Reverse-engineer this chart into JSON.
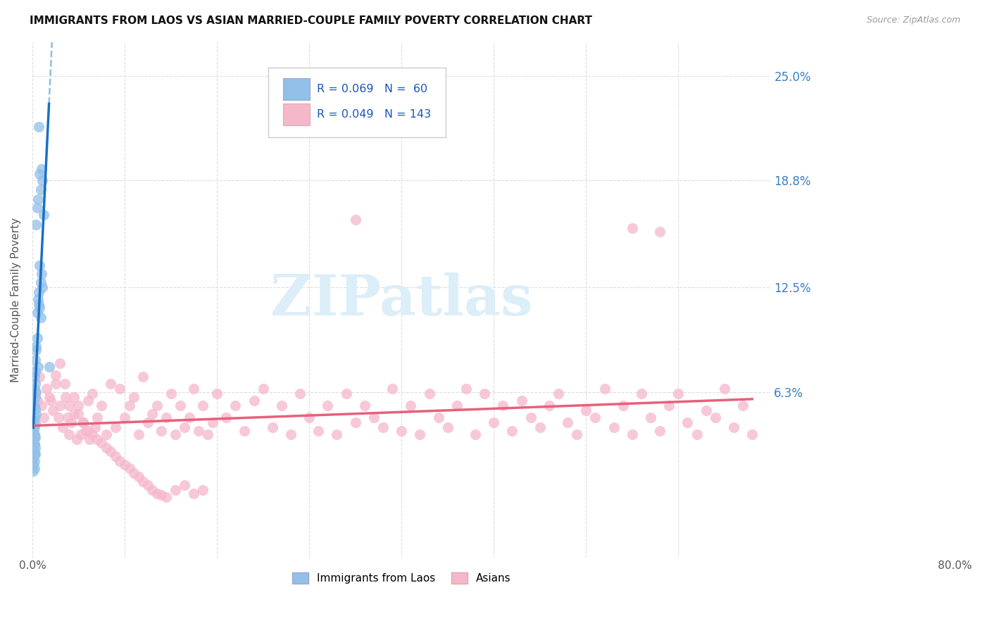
{
  "title": "IMMIGRANTS FROM LAOS VS ASIAN MARRIED-COUPLE FAMILY POVERTY CORRELATION CHART",
  "source": "Source: ZipAtlas.com",
  "ylabel": "Married-Couple Family Poverty",
  "ytick_labels": [
    "6.3%",
    "12.5%",
    "18.8%",
    "25.0%"
  ],
  "ytick_values": [
    0.063,
    0.125,
    0.188,
    0.25
  ],
  "xlim": [
    0.0,
    0.8
  ],
  "ylim": [
    -0.035,
    0.27
  ],
  "legend_color1": "#92c0e8",
  "legend_color2": "#f5b8cb",
  "scatter1_color": "#92c0e8",
  "scatter2_color": "#f5b8cb",
  "line1_color": "#1a6fc4",
  "line2_color": "#e8607a",
  "trend_dash_color": "#90bce0",
  "watermark": "ZIPatlas",
  "watermark_color": "#dceef8",
  "background_color": "#ffffff",
  "grid_color": "#dddddd",
  "laos_x": [
    0.007,
    0.01,
    0.008,
    0.011,
    0.009,
    0.006,
    0.005,
    0.012,
    0.004,
    0.008,
    0.01,
    0.009,
    0.011,
    0.007,
    0.006,
    0.008,
    0.005,
    0.009,
    0.004,
    0.003,
    0.006,
    0.007,
    0.005,
    0.004,
    0.003,
    0.002,
    0.003,
    0.002,
    0.004,
    0.003,
    0.001,
    0.002,
    0.003,
    0.004,
    0.002,
    0.001,
    0.003,
    0.002,
    0.001,
    0.002,
    0.003,
    0.001,
    0.002,
    0.001,
    0.002,
    0.003,
    0.001,
    0.002,
    0.001,
    0.002,
    0.001,
    0.001,
    0.002,
    0.001,
    0.002,
    0.003,
    0.001,
    0.002,
    0.001,
    0.018
  ],
  "laos_y": [
    0.22,
    0.195,
    0.192,
    0.188,
    0.183,
    0.177,
    0.172,
    0.168,
    0.162,
    0.138,
    0.133,
    0.128,
    0.125,
    0.122,
    0.118,
    0.113,
    0.11,
    0.107,
    0.088,
    0.082,
    0.078,
    0.115,
    0.095,
    0.09,
    0.075,
    0.072,
    0.068,
    0.065,
    0.063,
    0.06,
    0.058,
    0.055,
    0.053,
    0.05,
    0.048,
    0.046,
    0.044,
    0.042,
    0.04,
    0.038,
    0.036,
    0.034,
    0.032,
    0.03,
    0.028,
    0.026,
    0.024,
    0.022,
    0.02,
    0.018,
    0.016,
    0.038,
    0.036,
    0.034,
    0.032,
    0.03,
    0.028,
    0.026,
    0.024,
    0.078
  ],
  "asians_x": [
    0.003,
    0.005,
    0.008,
    0.01,
    0.012,
    0.015,
    0.018,
    0.02,
    0.022,
    0.025,
    0.028,
    0.03,
    0.033,
    0.036,
    0.038,
    0.04,
    0.042,
    0.045,
    0.048,
    0.05,
    0.053,
    0.055,
    0.058,
    0.06,
    0.062,
    0.065,
    0.068,
    0.07,
    0.075,
    0.08,
    0.085,
    0.09,
    0.095,
    0.1,
    0.105,
    0.11,
    0.115,
    0.12,
    0.125,
    0.13,
    0.135,
    0.14,
    0.145,
    0.15,
    0.155,
    0.16,
    0.165,
    0.17,
    0.175,
    0.18,
    0.185,
    0.19,
    0.195,
    0.2,
    0.21,
    0.22,
    0.23,
    0.24,
    0.25,
    0.26,
    0.27,
    0.28,
    0.29,
    0.3,
    0.31,
    0.32,
    0.33,
    0.34,
    0.35,
    0.36,
    0.37,
    0.38,
    0.39,
    0.4,
    0.41,
    0.42,
    0.43,
    0.44,
    0.45,
    0.46,
    0.47,
    0.48,
    0.49,
    0.5,
    0.51,
    0.52,
    0.53,
    0.54,
    0.55,
    0.56,
    0.57,
    0.58,
    0.59,
    0.6,
    0.61,
    0.62,
    0.63,
    0.64,
    0.65,
    0.66,
    0.67,
    0.68,
    0.69,
    0.7,
    0.71,
    0.72,
    0.73,
    0.74,
    0.75,
    0.76,
    0.77,
    0.78,
    0.025,
    0.03,
    0.035,
    0.04,
    0.045,
    0.05,
    0.055,
    0.06,
    0.065,
    0.07,
    0.075,
    0.08,
    0.085,
    0.09,
    0.095,
    0.1,
    0.105,
    0.11,
    0.115,
    0.12,
    0.125,
    0.13,
    0.135,
    0.14,
    0.145,
    0.155,
    0.165,
    0.175,
    0.185,
    0.35,
    0.65,
    0.68
  ],
  "asians_y": [
    0.063,
    0.058,
    0.072,
    0.055,
    0.048,
    0.065,
    0.06,
    0.058,
    0.052,
    0.068,
    0.048,
    0.055,
    0.042,
    0.06,
    0.048,
    0.038,
    0.045,
    0.05,
    0.035,
    0.055,
    0.038,
    0.045,
    0.04,
    0.058,
    0.035,
    0.062,
    0.042,
    0.048,
    0.055,
    0.038,
    0.068,
    0.042,
    0.065,
    0.048,
    0.055,
    0.06,
    0.038,
    0.072,
    0.045,
    0.05,
    0.055,
    0.04,
    0.048,
    0.062,
    0.038,
    0.055,
    0.042,
    0.048,
    0.065,
    0.04,
    0.055,
    0.038,
    0.045,
    0.062,
    0.048,
    0.055,
    0.04,
    0.058,
    0.065,
    0.042,
    0.055,
    0.038,
    0.062,
    0.048,
    0.04,
    0.055,
    0.038,
    0.062,
    0.045,
    0.055,
    0.048,
    0.042,
    0.065,
    0.04,
    0.055,
    0.038,
    0.062,
    0.048,
    0.042,
    0.055,
    0.065,
    0.038,
    0.062,
    0.045,
    0.055,
    0.04,
    0.058,
    0.048,
    0.042,
    0.055,
    0.062,
    0.045,
    0.038,
    0.052,
    0.048,
    0.065,
    0.042,
    0.055,
    0.038,
    0.062,
    0.048,
    0.04,
    0.055,
    0.062,
    0.045,
    0.038,
    0.052,
    0.048,
    0.065,
    0.042,
    0.055,
    0.038,
    0.073,
    0.08,
    0.068,
    0.055,
    0.06,
    0.05,
    0.045,
    0.04,
    0.038,
    0.035,
    0.033,
    0.03,
    0.028,
    0.025,
    0.022,
    0.02,
    0.018,
    0.015,
    0.013,
    0.01,
    0.008,
    0.005,
    0.003,
    0.002,
    0.001,
    0.005,
    0.008,
    0.003,
    0.005,
    0.165,
    0.16,
    0.158
  ]
}
